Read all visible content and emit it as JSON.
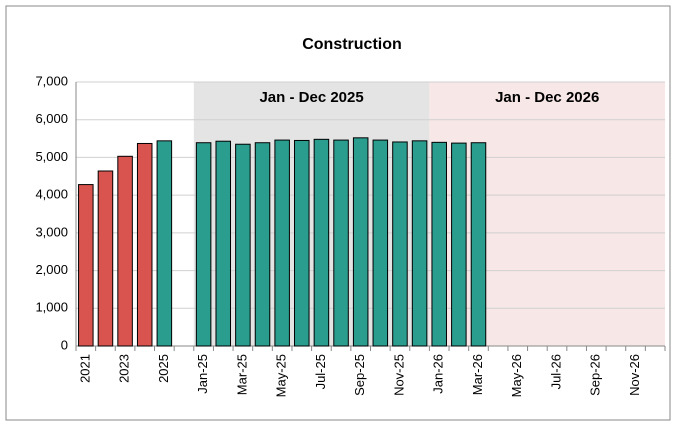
{
  "chart_data": {
    "type": "bar",
    "title": "Construction",
    "categories": [
      "2021",
      null,
      "2023",
      null,
      "2025",
      null,
      "Jan-25",
      null,
      "Mar-25",
      null,
      "May-25",
      null,
      "Jul-25",
      null,
      "Sep-25",
      null,
      "Nov-25",
      null,
      "Jan-26",
      null,
      "Mar-26",
      null,
      "May-26",
      null,
      "Jul-26",
      null,
      "Sep-26",
      null,
      "Nov-26",
      null
    ],
    "series": [
      {
        "color": "#d9534f",
        "values": [
          4280,
          4640,
          5030,
          5370,
          null,
          null,
          null,
          null,
          null,
          null,
          null,
          null,
          null,
          null,
          null,
          null,
          null,
          null,
          null,
          null,
          null,
          null,
          null,
          null,
          null,
          null,
          null,
          null,
          null,
          null
        ]
      },
      {
        "color": "#2a9d8f",
        "values": [
          null,
          null,
          null,
          null,
          5440,
          null,
          5390,
          5430,
          5350,
          5390,
          5460,
          5450,
          5480,
          5460,
          5520,
          5460,
          5410,
          5440,
          5400,
          5380,
          5390,
          null,
          null,
          null,
          null,
          null,
          null,
          null,
          null,
          null
        ]
      }
    ],
    "ylim": [
      0,
      7000
    ],
    "yticks": [
      0,
      {
        "value": 1000,
        "label": "1,000"
      },
      {
        "value": 2000,
        "label": "2,000"
      },
      {
        "value": 3000,
        "label": "3,000"
      },
      {
        "value": 4000,
        "label": "4,000"
      },
      {
        "value": 5000,
        "label": "5,000"
      },
      {
        "value": 6000,
        "label": "6,000"
      },
      {
        "value": 7000,
        "label": "7,000"
      }
    ],
    "grid": true,
    "annotations": [
      {
        "label": "Jan - Dec 2025",
        "from": 6,
        "to": 17,
        "color": "#e4e4e4"
      },
      {
        "label": "Jan - Dec 2026",
        "from": 18,
        "to": 29,
        "color": "#f8e7e7"
      }
    ]
  }
}
